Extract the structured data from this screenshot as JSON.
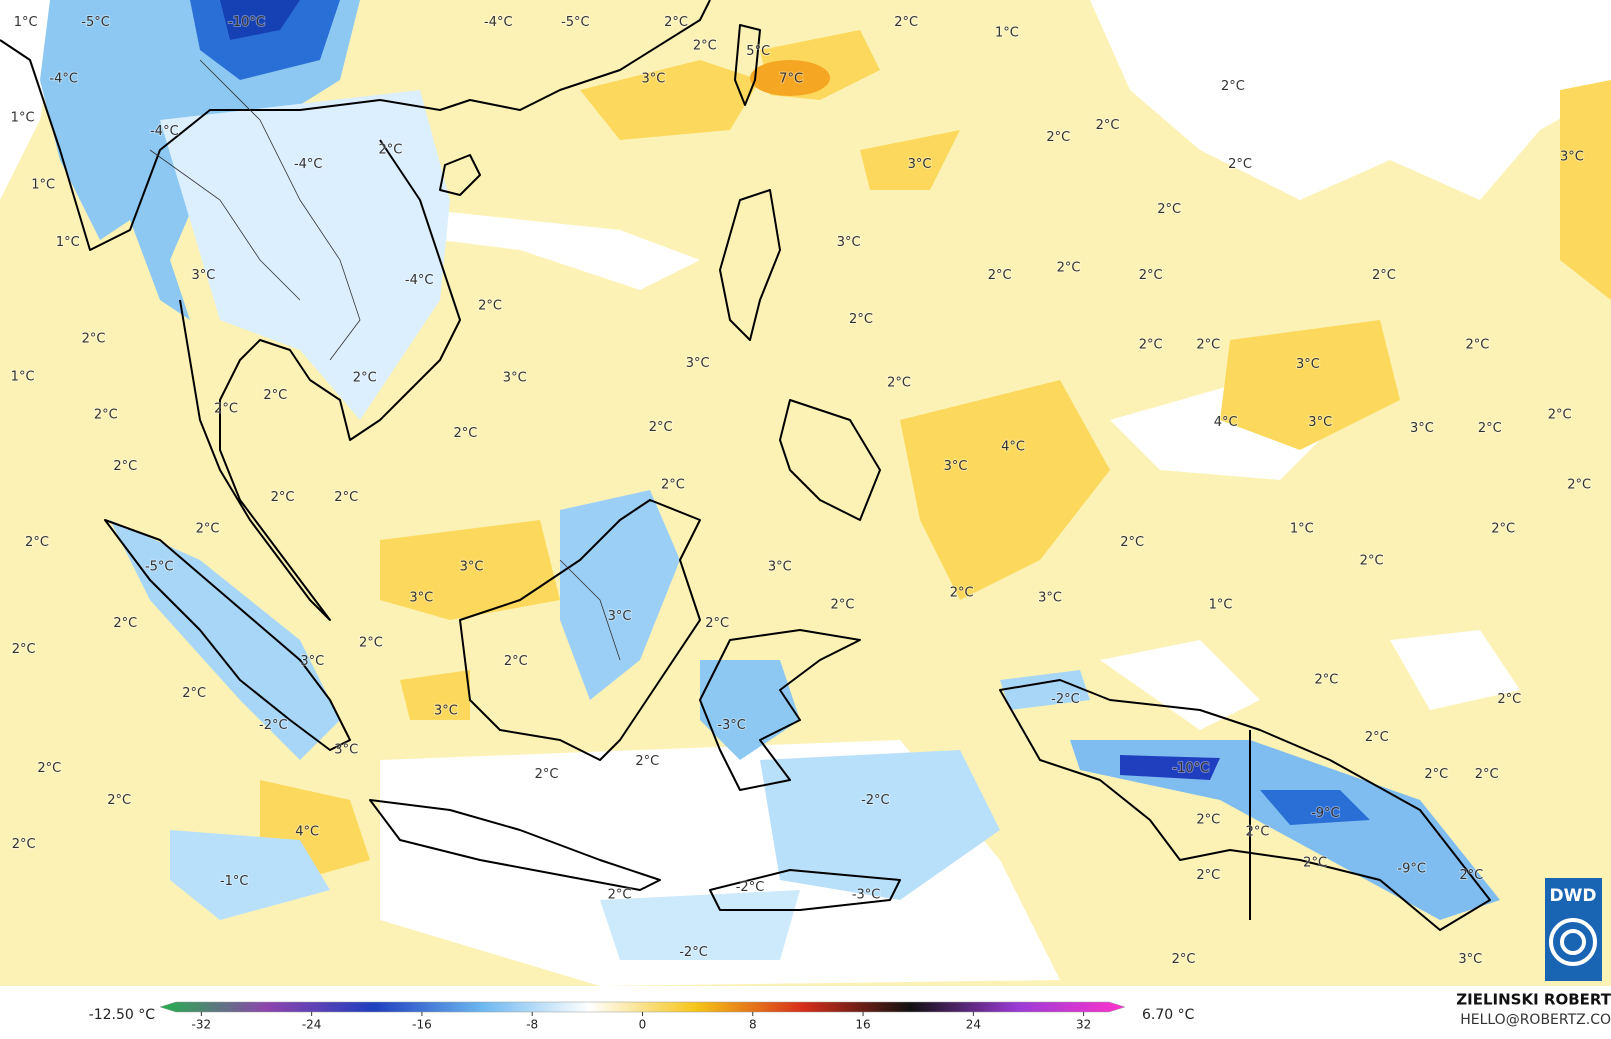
{
  "map": {
    "labels": [
      "-10°C",
      "-5°C",
      "1°C",
      "-4°C",
      "-5°C",
      "2°C",
      "2°C",
      "2°C",
      "1°C",
      "5°C",
      "7°C",
      "3°C",
      "-4°C",
      "1°C",
      "-4°C",
      "2°C",
      "2°C",
      "2°C",
      "2°C",
      "3°C",
      "3°C",
      "1°C",
      "-4°C",
      "2°C",
      "2°C",
      "1°C",
      "3°C",
      "2°C",
      "2°C",
      "2°C",
      "2°C",
      "3°C",
      "-4°C",
      "2°C",
      "2°C",
      "2°C",
      "3°C",
      "2°C",
      "2°C",
      "3°C",
      "2°C",
      "1°C",
      "2°C",
      "3°C",
      "2°C",
      "2°C",
      "2°C",
      "2°C",
      "2°C",
      "2°C",
      "4°C",
      "3°C",
      "3°C",
      "2°C",
      "2°C",
      "4°C",
      "3°C",
      "2°C",
      "2°C",
      "2°C",
      "2°C",
      "2°C",
      "2°C",
      "2°C",
      "2°C",
      "1°C",
      "2°C",
      "-5°C",
      "3°C",
      "3°C",
      "2°C",
      "3°C",
      "2°C",
      "3°C",
      "1°C",
      "2°C",
      "3°C",
      "2°C",
      "2°C",
      "2°C",
      "2°C",
      "3°C",
      "2°C",
      "2°C",
      "-2°C",
      "2°C",
      "2°C",
      "3°C",
      "-3°C",
      "-2°C",
      "2°C",
      "3°C",
      "-10°C",
      "2°C",
      "2°C",
      "2°C",
      "2°C",
      "2°C",
      "-2°C",
      "2°C",
      "-9°C",
      "2°C",
      "2°C",
      "4°C",
      "2°C",
      "2°C",
      "-9°C",
      "2°C",
      "2°C",
      "-1°C",
      "-2°C",
      "2°C",
      "-3°C",
      "-2°C",
      "2°C",
      "3°C"
    ]
  },
  "colorbar": {
    "min_label": "-12.50 °C",
    "max_label": "6.70 °C",
    "lim": [
      -35,
      35
    ],
    "ticks": [
      -32,
      -24,
      -16,
      -8,
      0,
      8,
      16,
      24,
      32
    ],
    "colors": [
      "#22b14c",
      "#8e44ad",
      "#1f3fbf",
      "#6bb7f0",
      "#ffffff",
      "#f5c518",
      "#d62d1a",
      "#111111",
      "#9b3bd6",
      "#ff33cc"
    ]
  },
  "credit": {
    "author": "ZIELINSKI ROBERT",
    "contact": "HELLO@ROBERTZ.CO"
  },
  "logo": "DWD"
}
